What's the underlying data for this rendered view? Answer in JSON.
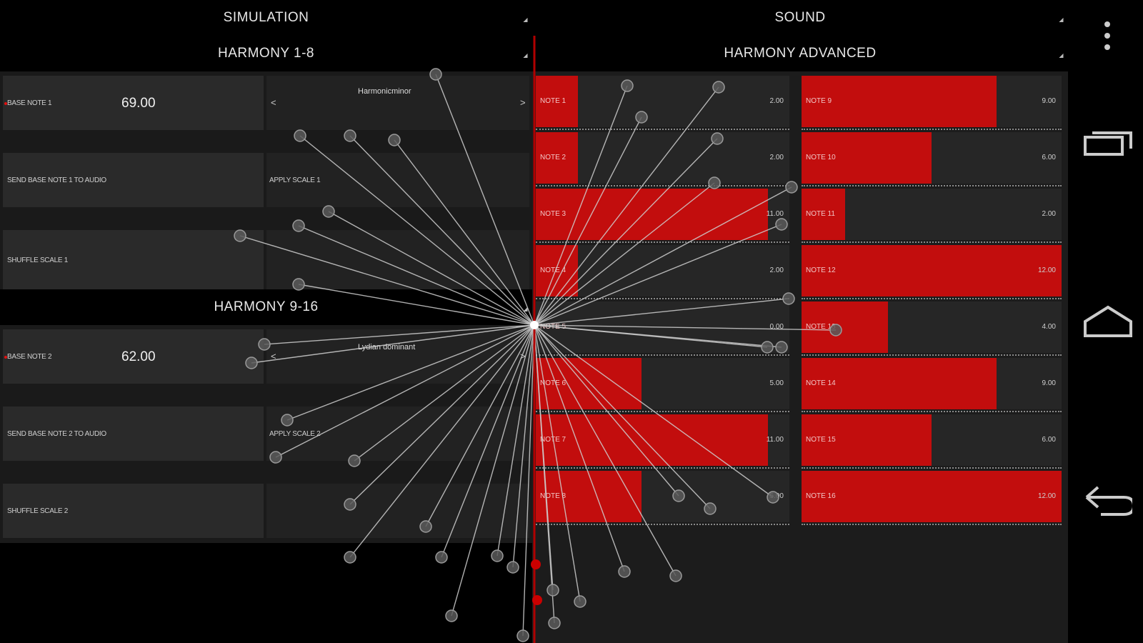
{
  "tabs": {
    "simulation": "SIMULATION",
    "sound": "SOUND",
    "harmony_1_8": "HARMONY 1-8",
    "harmony_advanced": "HARMONY ADVANCED",
    "harmony_9_16": "HARMONY 9-16"
  },
  "group1": {
    "base_note_label": "BASE NOTE 1",
    "base_note_value": "69.00",
    "scale_name": "Harmonicminor",
    "prev_arrow": "<",
    "next_arrow": ">",
    "send_label": "SEND BASE NOTE 1 TO AUDIO",
    "apply_label": "APPLY SCALE 1",
    "shuffle_label": "SHUFFLE SCALE 1"
  },
  "group2": {
    "base_note_label": "BASE NOTE 2",
    "base_note_value": "62.00",
    "scale_name": "Lydian dominant",
    "prev_arrow": "<",
    "next_arrow": ">",
    "send_label": "SEND BASE NOTE 2 TO AUDIO",
    "apply_label": "APPLY SCALE 2",
    "shuffle_label": "SHUFFLE SCALE 2"
  },
  "notes_left": [
    {
      "label": "NOTE 1",
      "value": "2.00",
      "level": 2
    },
    {
      "label": "NOTE 2",
      "value": "2.00",
      "level": 2
    },
    {
      "label": "NOTE 3",
      "value": "11.00",
      "level": 11
    },
    {
      "label": "NOTE 4",
      "value": "2.00",
      "level": 2
    },
    {
      "label": "NOTE 5",
      "value": "0.00",
      "level": 0
    },
    {
      "label": "NOTE 6",
      "value": "5.00",
      "level": 5
    },
    {
      "label": "NOTE 7",
      "value": "11.00",
      "level": 11
    },
    {
      "label": "NOTE 8",
      "value": "5.00",
      "level": 5
    }
  ],
  "notes_right": [
    {
      "label": "NOTE 9",
      "value": "9.00",
      "level": 9
    },
    {
      "label": "NOTE 10",
      "value": "6.00",
      "level": 6
    },
    {
      "label": "NOTE 11",
      "value": "2.00",
      "level": 2
    },
    {
      "label": "NOTE 12",
      "value": "12.00",
      "level": 12
    },
    {
      "label": "NOTE 13",
      "value": "4.00",
      "level": 4
    },
    {
      "label": "NOTE 14",
      "value": "9.00",
      "level": 9
    },
    {
      "label": "NOTE 15",
      "value": "6.00",
      "level": 6
    },
    {
      "label": "NOTE 16",
      "value": "12.00",
      "level": 12
    }
  ],
  "note_max": 12,
  "colors": {
    "accent_red": "#c20d0d",
    "background": "#000000",
    "panel": "#1a1a1a",
    "cell": "#2a2a2a"
  },
  "icons": {
    "overflow": "overflow-menu-icon",
    "recents": "recents-icon",
    "home": "home-icon",
    "back": "back-icon"
  }
}
